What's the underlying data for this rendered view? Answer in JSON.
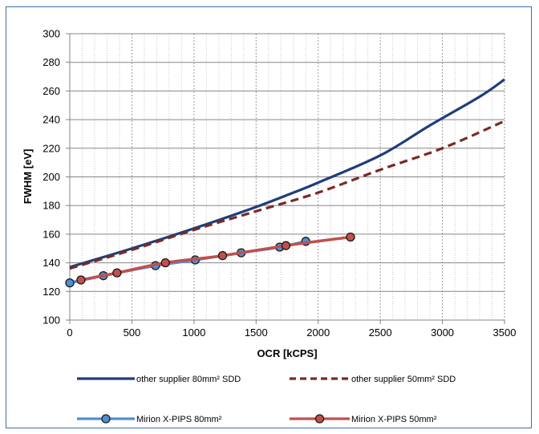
{
  "chart_data": {
    "type": "line",
    "xlabel": "OCR [kCPS]",
    "ylabel": "FWHM [eV]",
    "xlim": [
      0,
      3500
    ],
    "ylim": [
      100,
      300
    ],
    "x_ticks": [
      0,
      500,
      1000,
      1500,
      2000,
      2500,
      3000,
      3500
    ],
    "y_ticks": [
      100,
      120,
      140,
      160,
      180,
      200,
      220,
      240,
      260,
      280,
      300
    ],
    "x_tick_labels": [
      "0",
      "500",
      "1000",
      "1500",
      "2000",
      "2500",
      "3000",
      "3500"
    ],
    "y_tick_labels": [
      "100",
      "120",
      "140",
      "160",
      "180",
      "200",
      "220",
      "240",
      "260",
      "280",
      "300"
    ],
    "grid": true,
    "legend_position": "bottom",
    "series": [
      {
        "name": "other supplier 80mm² SDD",
        "color": "#1f3d7a",
        "style": "solid",
        "markers": false,
        "points": [
          [
            0,
            137
          ],
          [
            500,
            150
          ],
          [
            1000,
            164
          ],
          [
            1500,
            179
          ],
          [
            1800,
            189
          ],
          [
            2000,
            196
          ],
          [
            2500,
            215
          ],
          [
            2900,
            236
          ],
          [
            3300,
            256
          ],
          [
            3500,
            268
          ]
        ]
      },
      {
        "name": "other supplier 50mm² SDD",
        "color": "#7a2a26",
        "style": "dashed",
        "markers": false,
        "points": [
          [
            0,
            136
          ],
          [
            500,
            149
          ],
          [
            1000,
            163
          ],
          [
            1500,
            176
          ],
          [
            2000,
            189
          ],
          [
            2500,
            205
          ],
          [
            3000,
            220
          ],
          [
            3500,
            239
          ]
        ]
      },
      {
        "name": "Mirion X-PIPS 80mm²",
        "color": "#4f8fd1",
        "marker_fill": "#4f8fd1",
        "style": "solid",
        "markers": true,
        "points": [
          [
            0,
            126
          ],
          [
            270,
            131
          ],
          [
            690,
            138
          ],
          [
            1010,
            142
          ],
          [
            1380,
            147
          ],
          [
            1690,
            151
          ],
          [
            1900,
            155
          ]
        ]
      },
      {
        "name": "Mirion X-PIPS 50mm²",
        "color": "#c0504d",
        "marker_fill": "#c0504d",
        "style": "solid",
        "markers": true,
        "points": [
          [
            90,
            128
          ],
          [
            380,
            133
          ],
          [
            770,
            140
          ],
          [
            1230,
            145
          ],
          [
            1740,
            152
          ],
          [
            2260,
            158
          ]
        ]
      }
    ]
  }
}
